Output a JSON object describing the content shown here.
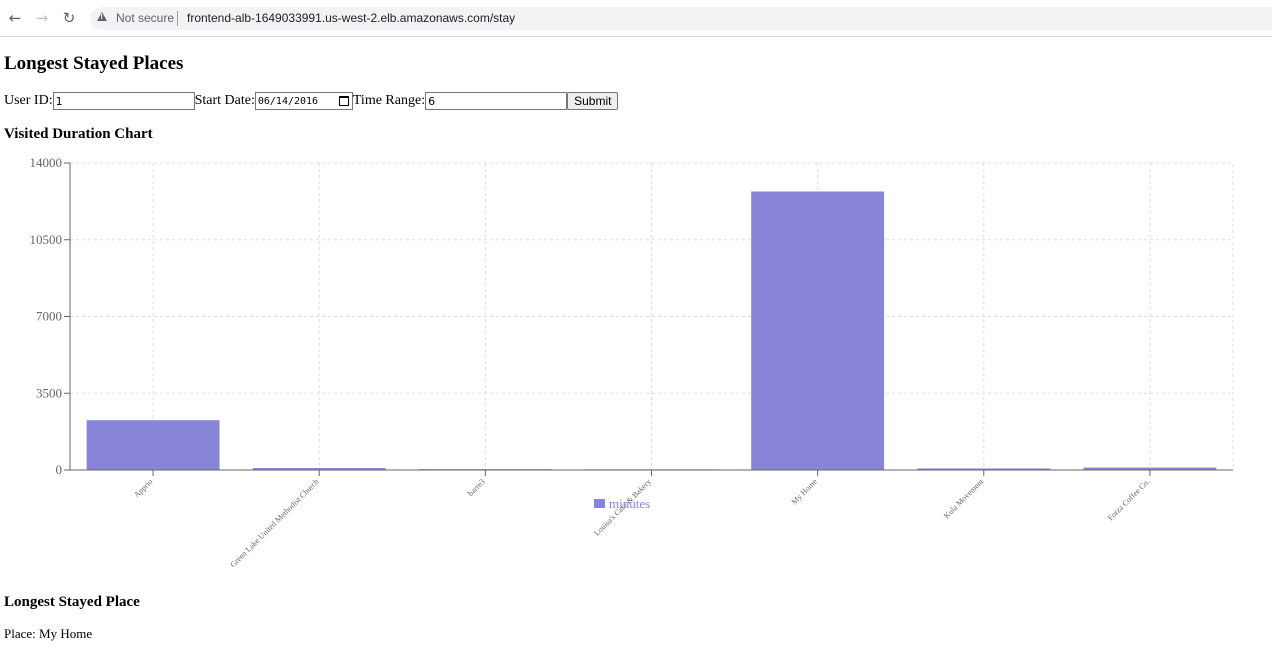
{
  "browser": {
    "security_label": "Not secure",
    "url": "frontend-alb-1649033991.us-west-2.elb.amazonaws.com/stay"
  },
  "page": {
    "title": "Longest Stayed Places"
  },
  "form": {
    "user_id_label": "User ID:",
    "user_id_value": "1",
    "start_date_label": "Start Date:",
    "start_date_value": "06/14/2016",
    "time_range_label": "Time Range:",
    "time_range_value": "6",
    "submit_label": "Submit"
  },
  "chart_section": {
    "heading": "Visited Duration Chart"
  },
  "chart_data": {
    "type": "bar",
    "categories": [
      "Apprio",
      "Green Lake United Methodist Church",
      "barre3",
      "Louisa's Cafe & Bakery",
      "My Home",
      "Kula Movement",
      "Forza Coffee Co."
    ],
    "series": [
      {
        "name": "minutes",
        "values": [
          2270,
          90,
          40,
          30,
          12700,
          70,
          110
        ]
      }
    ],
    "y_ticks": [
      "0",
      "3500",
      "7000",
      "10500",
      "14000"
    ],
    "ylim": [
      0,
      14000
    ],
    "grid": true,
    "legend_position": "bottom-center",
    "bar_color": "#8884d8"
  },
  "result_section": {
    "heading": "Longest Stayed Place",
    "place_label": "Place: ",
    "place_value": "My Home"
  }
}
